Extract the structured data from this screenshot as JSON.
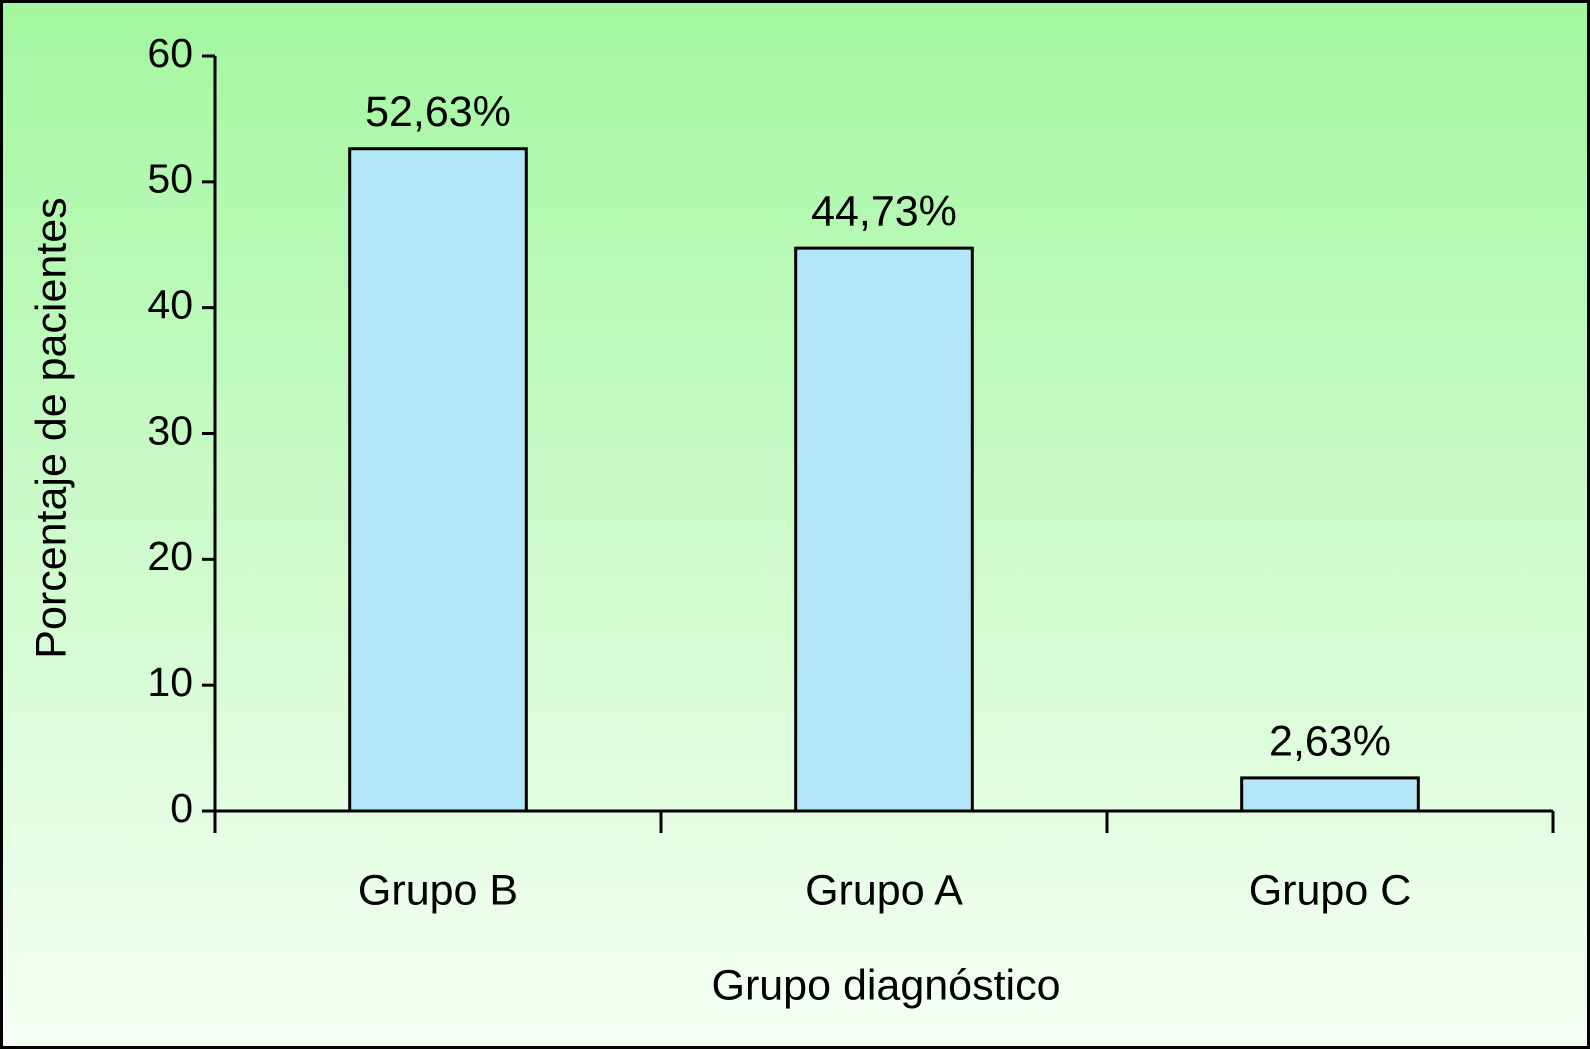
{
  "chart_data": {
    "type": "bar",
    "categories": [
      "Grupo B",
      "Grupo A",
      "Grupo C"
    ],
    "values": [
      52.63,
      44.73,
      2.63
    ],
    "value_labels": [
      "52,63%",
      "44,73%",
      "2,63%"
    ],
    "color": "#b3e6f7",
    "x_label": "Grupo diagnóstico",
    "y_label": "Porcentaje de pacientes",
    "ylim": [
      0,
      60
    ],
    "yticks": [
      0,
      10,
      20,
      30,
      40,
      50,
      60
    ],
    "grid": false
  }
}
